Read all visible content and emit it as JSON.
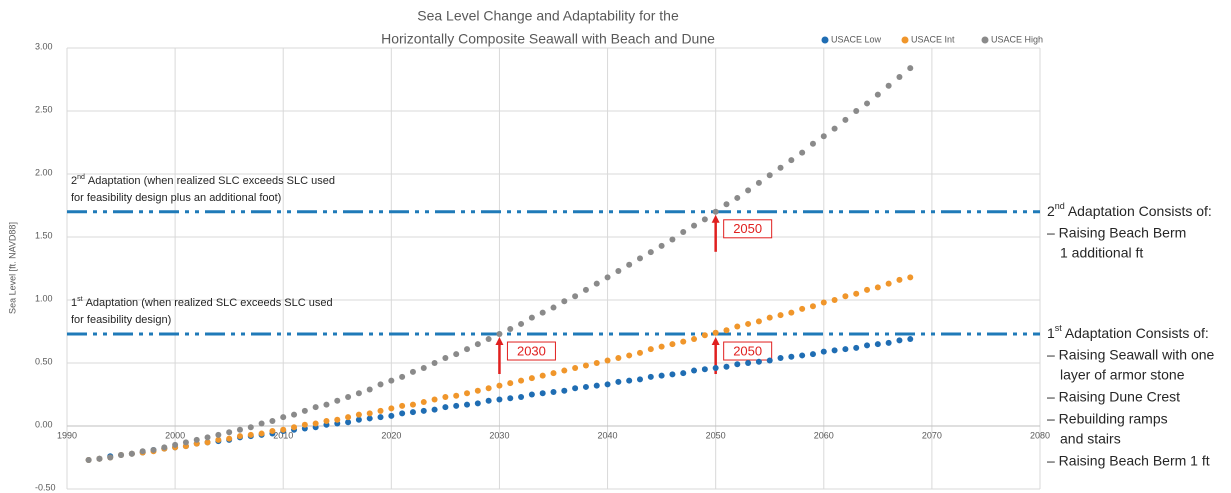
{
  "chart_data": {
    "type": "scatter",
    "title": [
      "Sea Level Change and Adaptability for the",
      "Horizontally Composite Seawall with Beach and Dune"
    ],
    "y_label": "Sea Level [ft. NAVD88]",
    "xlim": [
      1990,
      2080
    ],
    "xticks": [
      1990,
      2000,
      2010,
      2020,
      2030,
      2040,
      2050,
      2060,
      2070,
      2080
    ],
    "ylim": [
      -0.5,
      3.0
    ],
    "yticks": [
      {
        "value": -0.5,
        "label": "-0.50"
      },
      {
        "value": 0,
        "label": "0.00"
      },
      {
        "value": 0.5,
        "label": "0.50"
      },
      {
        "value": 1.0,
        "label": "1.00"
      },
      {
        "value": 1.5,
        "label": "1.50"
      },
      {
        "value": 2.0,
        "label": "2.00"
      },
      {
        "value": 2.5,
        "label": "2.50"
      },
      {
        "value": 3.0,
        "label": "3.00"
      }
    ],
    "grid": true,
    "legend": "top-right",
    "x": [
      1992,
      1993,
      1994,
      1995,
      1996,
      1997,
      1998,
      1999,
      2000,
      2001,
      2002,
      2003,
      2004,
      2005,
      2006,
      2007,
      2008,
      2009,
      2010,
      2011,
      2012,
      2013,
      2014,
      2015,
      2016,
      2017,
      2018,
      2019,
      2020,
      2021,
      2022,
      2023,
      2024,
      2025,
      2026,
      2027,
      2028,
      2029,
      2030,
      2031,
      2032,
      2033,
      2034,
      2035,
      2036,
      2037,
      2038,
      2039,
      2040,
      2041,
      2042,
      2043,
      2044,
      2045,
      2046,
      2047,
      2048,
      2049,
      2050,
      2051,
      2052,
      2053,
      2054,
      2055,
      2056,
      2057,
      2058,
      2059,
      2060,
      2061,
      2062,
      2063,
      2064,
      2065,
      2066,
      2067,
      2068
    ],
    "series": [
      {
        "name": "USACE Low",
        "color": "#1f6db3",
        "values": [
          -0.27,
          -0.26,
          -0.24,
          -0.23,
          -0.22,
          -0.21,
          -0.19,
          -0.18,
          -0.17,
          -0.16,
          -0.14,
          -0.13,
          -0.12,
          -0.11,
          -0.09,
          -0.08,
          -0.07,
          -0.06,
          -0.04,
          -0.03,
          -0.02,
          -0.01,
          0.01,
          0.02,
          0.03,
          0.05,
          0.06,
          0.07,
          0.08,
          0.1,
          0.11,
          0.12,
          0.13,
          0.15,
          0.16,
          0.17,
          0.18,
          0.2,
          0.21,
          0.22,
          0.23,
          0.25,
          0.26,
          0.27,
          0.28,
          0.3,
          0.31,
          0.32,
          0.33,
          0.35,
          0.36,
          0.37,
          0.39,
          0.4,
          0.41,
          0.42,
          0.44,
          0.45,
          0.46,
          0.47,
          0.49,
          0.5,
          0.51,
          0.52,
          0.54,
          0.55,
          0.56,
          0.57,
          0.59,
          0.6,
          0.61,
          0.62,
          0.64,
          0.65,
          0.66,
          0.68,
          0.69
        ]
      },
      {
        "name": "USACE Int",
        "color": "#f0962b",
        "values": [
          -0.27,
          -0.26,
          -0.25,
          -0.23,
          -0.22,
          -0.21,
          -0.2,
          -0.18,
          -0.17,
          -0.16,
          -0.14,
          -0.13,
          -0.11,
          -0.1,
          -0.08,
          -0.07,
          -0.06,
          -0.04,
          -0.03,
          -0.01,
          0.01,
          0.02,
          0.04,
          0.05,
          0.07,
          0.09,
          0.1,
          0.12,
          0.14,
          0.16,
          0.17,
          0.19,
          0.21,
          0.23,
          0.24,
          0.26,
          0.28,
          0.3,
          0.32,
          0.34,
          0.36,
          0.38,
          0.4,
          0.42,
          0.44,
          0.46,
          0.48,
          0.5,
          0.52,
          0.54,
          0.56,
          0.58,
          0.61,
          0.63,
          0.65,
          0.67,
          0.69,
          0.72,
          0.74,
          0.76,
          0.79,
          0.81,
          0.83,
          0.86,
          0.88,
          0.9,
          0.93,
          0.95,
          0.98,
          1.0,
          1.03,
          1.05,
          1.08,
          1.1,
          1.13,
          1.16,
          1.18
        ]
      },
      {
        "name": "USACE High",
        "color": "#8a8a8a",
        "values": [
          -0.27,
          -0.26,
          -0.25,
          -0.23,
          -0.22,
          -0.2,
          -0.19,
          -0.17,
          -0.15,
          -0.13,
          -0.11,
          -0.09,
          -0.07,
          -0.05,
          -0.03,
          -0.01,
          0.02,
          0.04,
          0.07,
          0.09,
          0.12,
          0.15,
          0.17,
          0.2,
          0.23,
          0.26,
          0.29,
          0.33,
          0.36,
          0.39,
          0.43,
          0.46,
          0.5,
          0.54,
          0.57,
          0.61,
          0.65,
          0.69,
          0.73,
          0.77,
          0.81,
          0.86,
          0.9,
          0.94,
          0.99,
          1.03,
          1.08,
          1.13,
          1.18,
          1.23,
          1.28,
          1.33,
          1.38,
          1.43,
          1.48,
          1.54,
          1.59,
          1.64,
          1.7,
          1.76,
          1.81,
          1.87,
          1.93,
          1.99,
          2.05,
          2.11,
          2.17,
          2.24,
          2.3,
          2.36,
          2.43,
          2.5,
          2.56,
          2.63,
          2.7,
          2.77,
          2.84
        ]
      }
    ],
    "hlines": [
      {
        "value": 1.7,
        "color": "#1f7ab8",
        "markers": [
          {
            "x": 2050
          }
        ],
        "note": {
          "prefix": "2",
          "sup": "nd",
          "lines": [
            "Adaptation (when realized SLC exceeds SLC used",
            "for feasibility design plus an additional foot)"
          ]
        },
        "side": {
          "prefix": "2",
          "sup": "nd",
          "heading": "Adaptation Consists of:",
          "lines": [
            "– Raising Beach Berm",
            "1 additional ft"
          ]
        }
      },
      {
        "value": 0.73,
        "color": "#1f7ab8",
        "markers": [
          {
            "x": 2030
          },
          {
            "x": 2050
          }
        ],
        "note": {
          "prefix": "1",
          "sup": "st",
          "lines": [
            "Adaptation (when realized SLC exceeds SLC used",
            "for feasibility design)"
          ]
        },
        "side": {
          "prefix": "1",
          "sup": "st",
          "heading": "Adaptation Consists of:",
          "lines": [
            "– Raising Seawall with one",
            "layer of armor stone",
            "– Raising Dune Crest",
            "– Rebuilding ramps",
            "and stairs",
            "– Raising Beach Berm 1 ft"
          ]
        }
      }
    ],
    "marker_color": "#e0201f"
  }
}
